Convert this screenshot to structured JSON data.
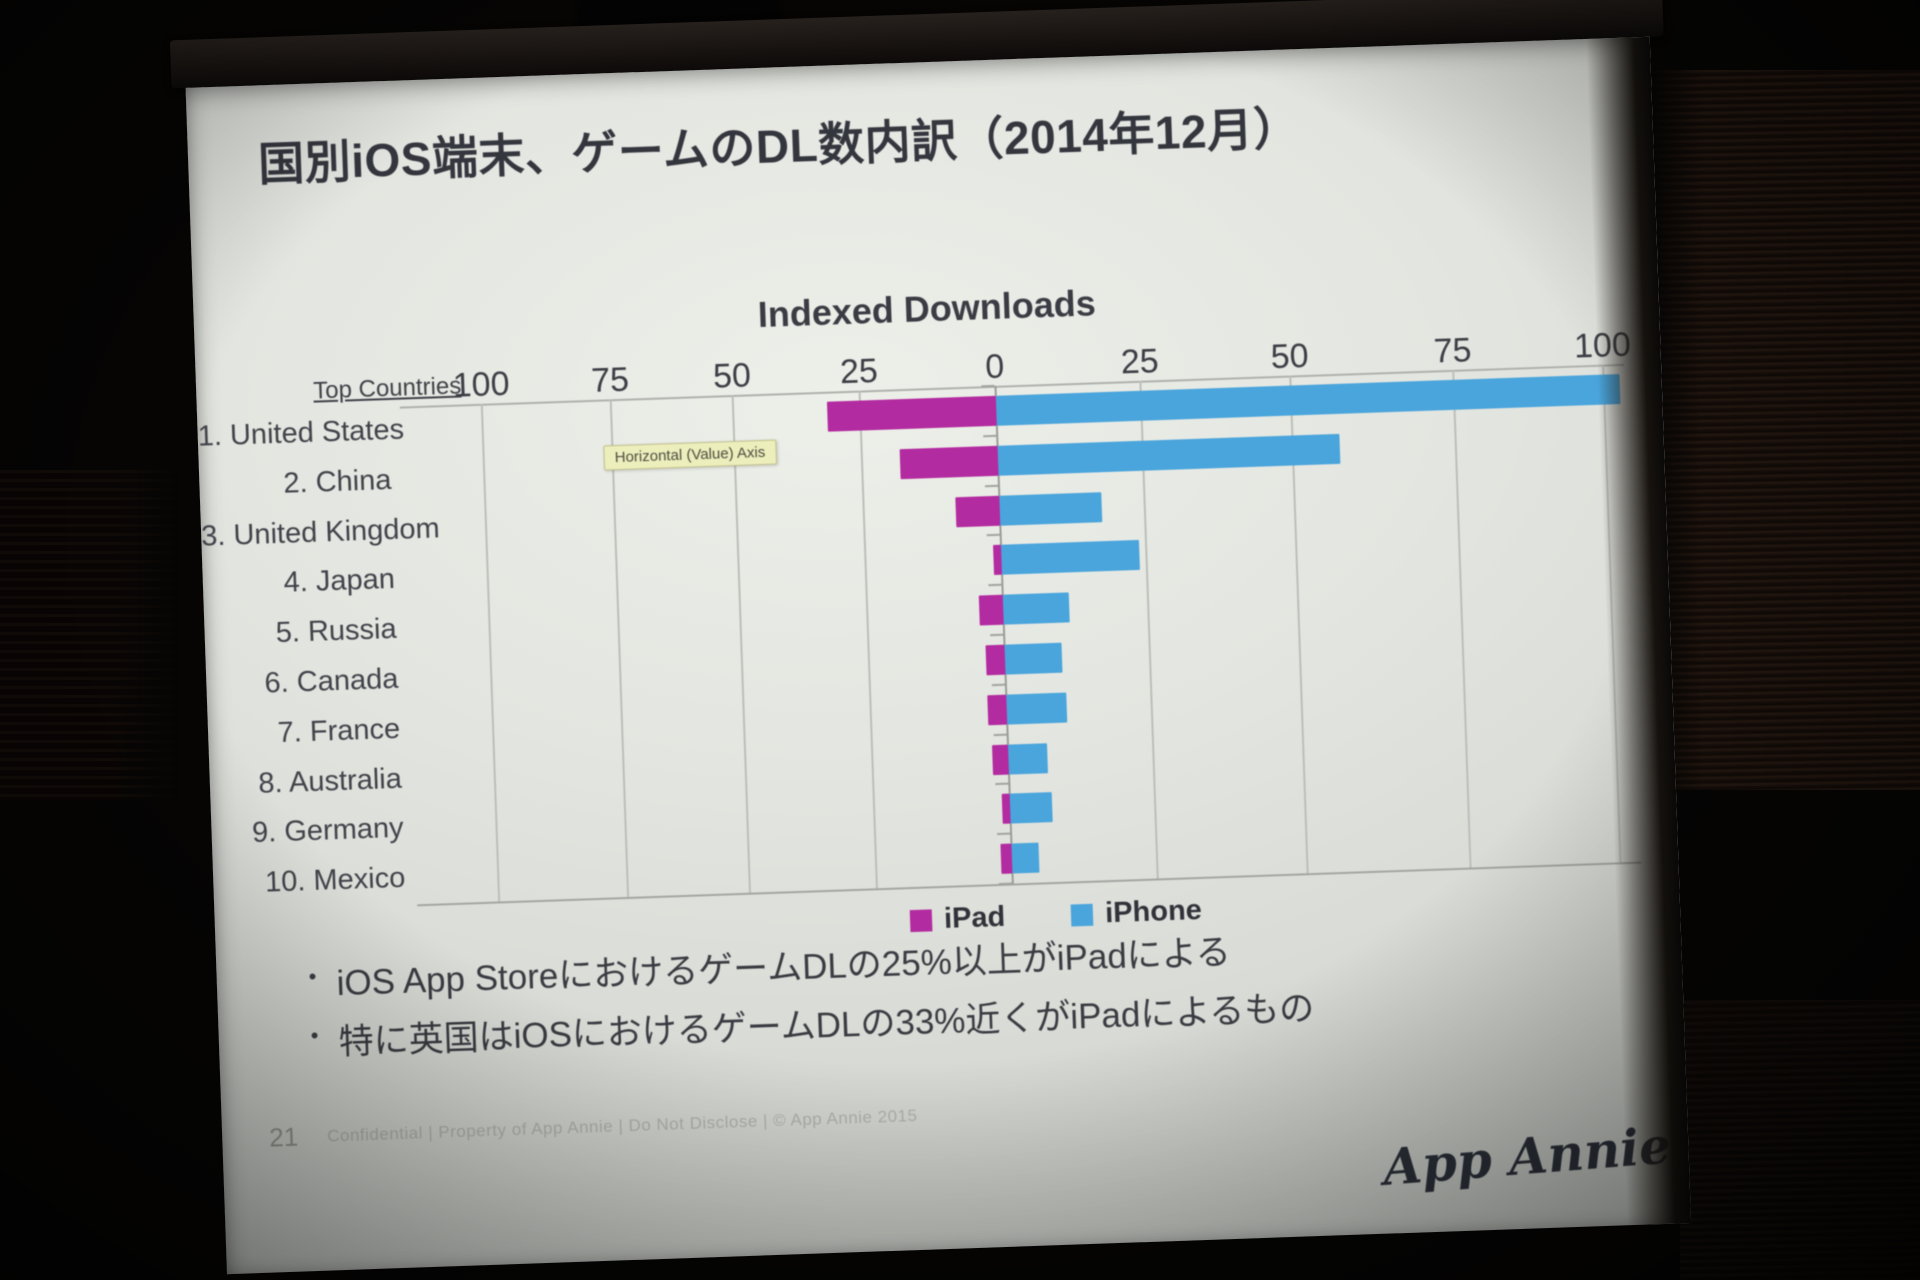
{
  "slide": {
    "title": "国別iOS端末、ゲームのDL数内訳（2014年12月）",
    "side_label": "Top Countries",
    "tooltip": "Horizontal (Value) Axis",
    "bullets": [
      "iOS App StoreにおけるゲームDLの25%以上がiPadによる",
      "特に英国はiOSにおけるゲームDLの33%近くがiPadによるもの"
    ],
    "footer": "Confidential  |  Property of App Annie  |  Do Not Disclose  |  © App Annie 2015",
    "page_number": "21",
    "logo": "App Annie"
  },
  "chart_data": {
    "type": "bar",
    "variant": "horizontal-diverging",
    "title": "Indexed Downloads",
    "categories": [
      "1. United States",
      "2. China",
      "3. United Kingdom",
      "4. Japan",
      "5. Russia",
      "6. Canada",
      "7. France",
      "8. Australia",
      "9. Germany",
      "10. Mexico"
    ],
    "series": [
      {
        "name": "iPad",
        "color": "#b32ba0",
        "direction": "left",
        "values": [
          31,
          18,
          8,
          1.5,
          4.5,
          3.5,
          3.5,
          3,
          1.5,
          2
        ]
      },
      {
        "name": "iPhone",
        "color": "#4aa5dc",
        "direction": "right",
        "values": [
          104,
          57,
          17,
          23,
          11,
          9.5,
          10,
          6.5,
          7,
          4.5
        ]
      }
    ],
    "x_tick_labels": [
      "100",
      "75",
      "50",
      "25",
      "0",
      "25",
      "50",
      "75",
      "100"
    ],
    "x_tick_values": [
      -100,
      -75,
      -50,
      -25,
      0,
      25,
      50,
      75,
      100
    ],
    "xlim": [
      -100,
      100
    ],
    "legend": [
      "iPad",
      "iPhone"
    ],
    "legend_position": "bottom",
    "grid": true,
    "layout_note": "iPad bars extend left of zero, iPhone bars extend right; US iPhone bar is clipped at the right screen edge beyond 100"
  }
}
